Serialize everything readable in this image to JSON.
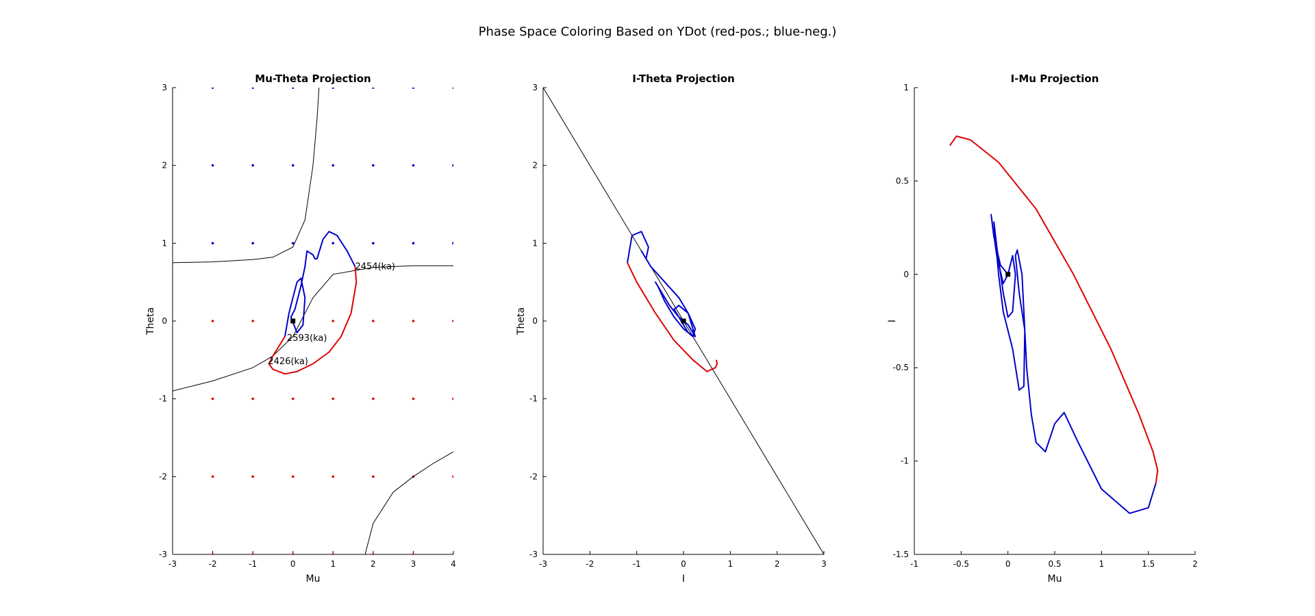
{
  "figure": {
    "title": "Phase Space Coloring Based on YDot (red-pos.; blue-neg.)"
  },
  "colors": {
    "positive": "#dd0000",
    "negative": "#0000cc",
    "curve": "#000000",
    "point": "#000000"
  },
  "chart_data": [
    {
      "type": "line",
      "title": "Mu-Theta Projection",
      "xlabel": "Mu",
      "ylabel": "Theta",
      "xlim": [
        -3,
        4
      ],
      "ylim": [
        -3,
        3
      ],
      "xticks": [
        "-3",
        "-2",
        "-1",
        "0",
        "1",
        "2",
        "3",
        "4"
      ],
      "yticks": [
        "-3",
        "-2",
        "-1",
        "0",
        "1",
        "2",
        "3"
      ],
      "grid": false,
      "vector_field_dots": {
        "x": [
          -2,
          -1,
          0,
          1,
          2,
          3,
          4
        ],
        "y": [
          -3,
          -2,
          -1,
          0,
          1,
          2,
          3
        ],
        "color_by_theta_sign": "red for theta <= 0 region below curve, blue above"
      },
      "nullclines": [
        {
          "x": [
            -3,
            -2,
            -1,
            -0.5,
            0,
            0.3,
            0.5,
            0.6,
            0.65
          ],
          "y": [
            0.75,
            0.76,
            0.79,
            0.82,
            0.95,
            1.3,
            2.0,
            2.6,
            3.0
          ]
        },
        {
          "x": [
            -3,
            -2,
            -1,
            -0.5,
            0,
            0.5,
            1,
            2,
            3,
            4
          ],
          "y": [
            -0.9,
            -0.77,
            -0.6,
            -0.45,
            -0.2,
            0.3,
            0.6,
            0.69,
            0.71,
            0.71
          ]
        },
        {
          "x": [
            1.8,
            2.0,
            2.5,
            3,
            3.5,
            4
          ],
          "y": [
            -3,
            -2.6,
            -2.2,
            -2.0,
            -1.83,
            -1.68
          ]
        }
      ],
      "series": [
        {
          "color": "positive",
          "x": [
            1.55,
            1.58,
            1.45,
            1.2,
            0.9,
            0.5,
            0.1,
            -0.2,
            -0.5,
            -0.6,
            -0.5,
            -0.2
          ],
          "y": [
            0.7,
            0.5,
            0.1,
            -0.2,
            -0.4,
            -0.55,
            -0.65,
            -0.68,
            -0.62,
            -0.55,
            -0.45,
            -0.2
          ]
        },
        {
          "color": "negative",
          "x": [
            -0.2,
            -0.1,
            0.05,
            0.1,
            0.2,
            0.3,
            0.25,
            0.1,
            -0.05,
            0.05,
            0.2,
            0.3,
            0.35,
            0.5,
            0.55,
            0.6,
            0.75,
            0.9,
            1.1,
            1.35,
            1.55
          ],
          "y": [
            -0.2,
            0.1,
            0.4,
            0.5,
            0.55,
            0.3,
            -0.05,
            -0.15,
            0.05,
            0.15,
            0.45,
            0.7,
            0.9,
            0.85,
            0.8,
            0.8,
            1.05,
            1.15,
            1.1,
            0.9,
            0.7
          ]
        }
      ],
      "marker": {
        "x": 0,
        "y": 0
      },
      "annotations": [
        {
          "text": "2454(ka)",
          "x": 1.55,
          "y": 0.7
        },
        {
          "text": "2593(ka)",
          "x": -0.15,
          "y": -0.22
        },
        {
          "text": "2426(ka)",
          "x": -0.62,
          "y": -0.52
        }
      ]
    },
    {
      "type": "line",
      "title": "I-Theta Projection",
      "xlabel": "I",
      "ylabel": "Theta",
      "xlim": [
        -3,
        3
      ],
      "ylim": [
        -3,
        3
      ],
      "xticks": [
        "-3",
        "-2",
        "-1",
        "0",
        "1",
        "2",
        "3"
      ],
      "yticks": [
        "-3",
        "-2",
        "-1",
        "0",
        "1",
        "2",
        "3"
      ],
      "grid": false,
      "nullclines": [
        {
          "x": [
            -3,
            3
          ],
          "y": [
            3,
            -3
          ]
        }
      ],
      "series": [
        {
          "color": "positive",
          "x": [
            -1.2,
            -1.0,
            -0.6,
            -0.2,
            0.2,
            0.5,
            0.68,
            0.72,
            0.7
          ],
          "y": [
            0.75,
            0.5,
            0.1,
            -0.25,
            -0.5,
            -0.65,
            -0.6,
            -0.55,
            -0.5
          ]
        },
        {
          "color": "negative",
          "x": [
            -1.2,
            -1.1,
            -0.9,
            -0.75,
            -0.8,
            -0.9,
            -0.7,
            -0.4,
            -0.1,
            0.1,
            0.25,
            0.1,
            0.0,
            -0.1,
            -0.2,
            -0.1,
            0.1,
            0.25,
            0.2,
            0.0,
            -0.2,
            -0.4,
            -0.55,
            -0.6,
            -0.5,
            -0.3,
            -0.1,
            0.1,
            0.25
          ],
          "y": [
            0.75,
            1.1,
            1.15,
            0.95,
            0.8,
            0.9,
            0.7,
            0.5,
            0.3,
            0.1,
            -0.2,
            -0.15,
            -0.05,
            0.05,
            0.15,
            0.2,
            0.1,
            -0.1,
            -0.2,
            -0.1,
            0.05,
            0.25,
            0.45,
            0.5,
            0.4,
            0.2,
            0.05,
            -0.05,
            -0.2
          ]
        }
      ],
      "marker": {
        "x": 0,
        "y": 0
      }
    },
    {
      "type": "line",
      "title": "I-Mu Projection",
      "xlabel": "Mu",
      "ylabel": "I",
      "xlim": [
        -1,
        2
      ],
      "ylim": [
        -1.5,
        1
      ],
      "xticks": [
        "-1",
        "-0.5",
        "0",
        "0.5",
        "1",
        "1.5",
        "2"
      ],
      "yticks": [
        "-1.5",
        "-1",
        "-0.5",
        "0",
        "0.5",
        "1"
      ],
      "grid": false,
      "series": [
        {
          "color": "positive",
          "x": [
            -0.62,
            -0.55,
            -0.4,
            -0.1,
            0.3,
            0.7,
            1.1,
            1.4,
            1.55,
            1.6,
            1.58
          ],
          "y": [
            0.69,
            0.74,
            0.72,
            0.6,
            0.35,
            0.0,
            -0.4,
            -0.75,
            -0.95,
            -1.05,
            -1.12
          ]
        },
        {
          "color": "negative",
          "x": [
            1.58,
            1.5,
            1.3,
            1.0,
            0.75,
            0.6,
            0.5,
            0.4,
            0.3,
            0.25,
            0.22,
            0.2,
            0.18,
            0.12,
            0.08,
            0.1,
            0.15,
            0.18,
            0.17,
            0.12,
            0.05,
            -0.05,
            -0.1,
            -0.15,
            -0.12,
            -0.05,
            0.0,
            0.05,
            0.08,
            0.05,
            0.0,
            -0.05,
            -0.12,
            -0.18,
            -0.15,
            -0.08,
            0.0
          ],
          "y": [
            -1.12,
            -1.25,
            -1.28,
            -1.15,
            -0.9,
            -0.74,
            -0.8,
            -0.95,
            -0.9,
            -0.75,
            -0.6,
            -0.5,
            -0.3,
            -0.1,
            0.1,
            0.13,
            0.0,
            -0.3,
            -0.6,
            -0.62,
            -0.4,
            -0.2,
            0.0,
            0.28,
            0.15,
            -0.1,
            -0.23,
            -0.2,
            0.0,
            0.1,
            0.0,
            -0.05,
            0.1,
            0.32,
            0.2,
            0.05,
            0.0
          ]
        }
      ],
      "marker": {
        "x": 0,
        "y": 0
      }
    }
  ]
}
